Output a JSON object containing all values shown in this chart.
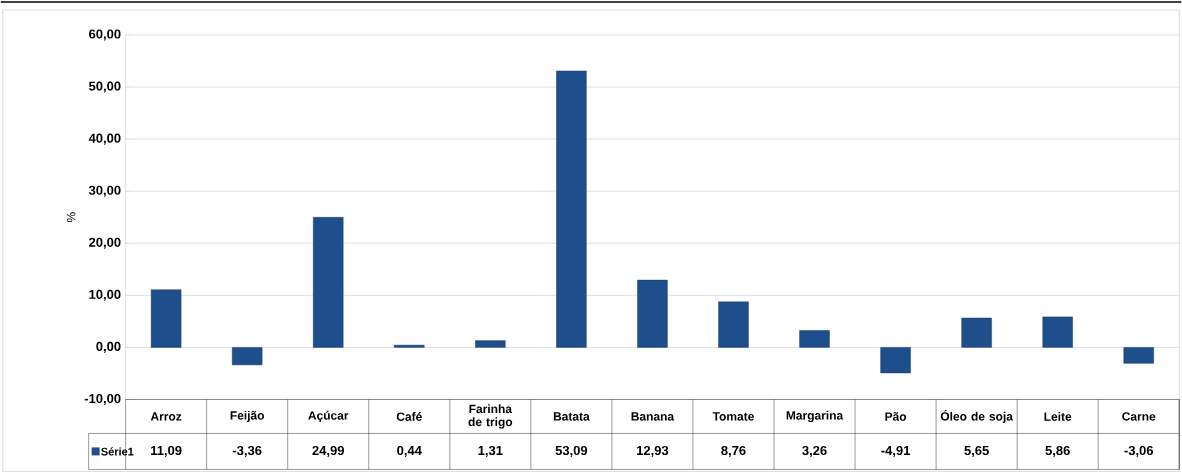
{
  "chart_data": {
    "type": "bar",
    "ylabel": "%",
    "categories": [
      "Arroz",
      "Feijão",
      "Açúcar",
      "Café",
      "Farinha de trigo",
      "Batata",
      "Banana",
      "Tomate",
      "Margarina",
      "Pão",
      "Óleo de soja",
      "Leite",
      "Carne"
    ],
    "series": [
      {
        "name": "Série1",
        "color": "#1f4e8c",
        "values": [
          11.09,
          -3.36,
          24.99,
          0.44,
          1.31,
          53.09,
          12.93,
          8.76,
          3.26,
          -4.91,
          5.65,
          5.86,
          -3.06
        ],
        "value_labels": [
          "11,09",
          "-3,36",
          "24,99",
          "0,44",
          "1,31",
          "53,09",
          "12,93",
          "8,76",
          "3,26",
          "-4,91",
          "5,65",
          "5,86",
          "-3,06"
        ]
      }
    ],
    "ylim": [
      -10,
      60
    ],
    "yticks": [
      {
        "value": -10,
        "label": "-10,00"
      },
      {
        "value": 0,
        "label": "0,00"
      },
      {
        "value": 10,
        "label": "10,00"
      },
      {
        "value": 20,
        "label": "20,00"
      },
      {
        "value": 30,
        "label": "30,00"
      },
      {
        "value": 40,
        "label": "40,00"
      },
      {
        "value": 50,
        "label": "50,00"
      },
      {
        "value": 60,
        "label": "60,00"
      }
    ],
    "grid": "y",
    "legend": "bottom"
  }
}
